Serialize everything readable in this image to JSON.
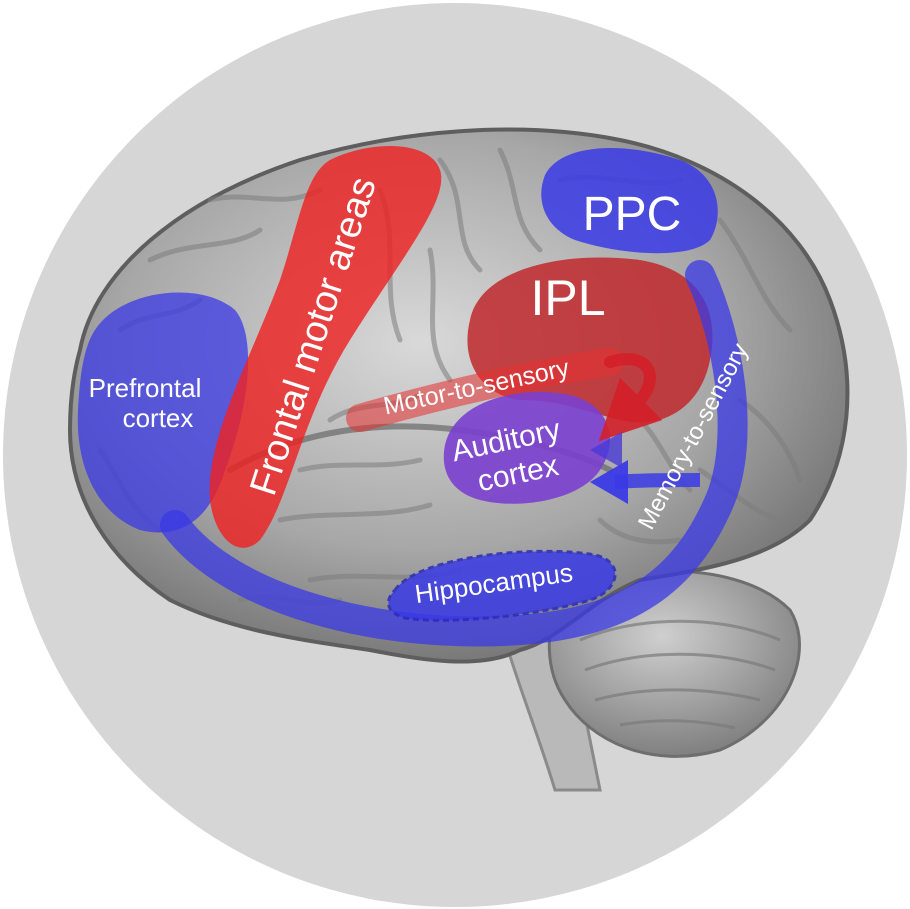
{
  "labels": {
    "prefrontal_line1": "Prefrontal",
    "prefrontal_line2": "cortex",
    "frontal_motor": "Frontal motor areas",
    "ppc": "PPC",
    "ipl": "IPL",
    "motor_to_sensory": "Motor-to-sensory",
    "auditory_line1": "Auditory",
    "auditory_line2": "cortex",
    "memory_to_sensory": "Memory-to-sensory",
    "hippocampus": "Hippocampus"
  },
  "colors": {
    "background_disc": "#d6d6d6",
    "brain_gray": "#a9a9a9",
    "blue_region": "#3a3ae6",
    "red_region": "#ee2a2a",
    "dark_red_region": "#c0282c",
    "purple_region": "#7a3fcf",
    "label_text": "#ffffff"
  }
}
